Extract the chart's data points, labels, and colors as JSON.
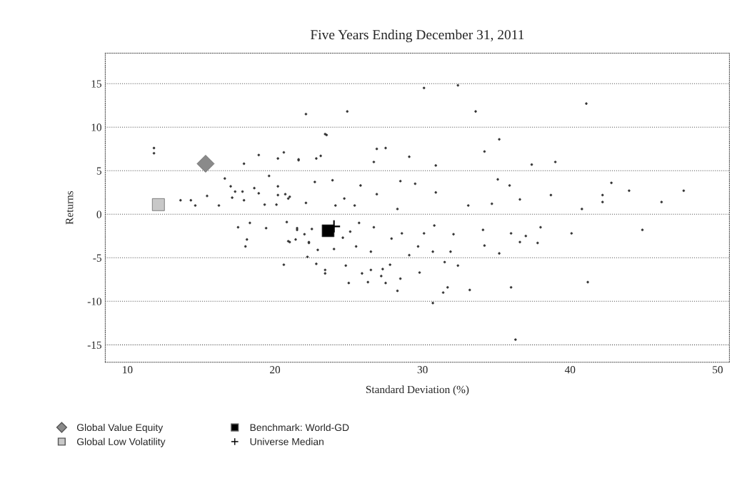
{
  "chart_data": {
    "type": "scatter",
    "title": "Five Years Ending December 31, 2011",
    "xlabel": "Standard Deviation (%)",
    "ylabel": "Returns",
    "xlim": [
      8.5,
      50.8
    ],
    "ylim": [
      -17,
      18.5
    ],
    "xticks": [
      10,
      20,
      30,
      40,
      50
    ],
    "yticks": [
      -15,
      -10,
      -5,
      0,
      5,
      10,
      15
    ],
    "grid": "y",
    "legend": "bottom",
    "series": [
      {
        "color": "#333333",
        "marker": "circle",
        "x": [
          30.1,
          32.4,
          41.1,
          22.1,
          24.9,
          33.6,
          23.5,
          35.2,
          26.9,
          27.5,
          23.1,
          29.1,
          21.6,
          34.2,
          37.4,
          39.0,
          30.9,
          26.7,
          42.8,
          44.0,
          47.7,
          42.2,
          42.2,
          46.2,
          40.8,
          38.7,
          35.9,
          36.6,
          34.7,
          33.1,
          35.1,
          30.9,
          29.5,
          28.5,
          23.9,
          22.7,
          25.8,
          26.9,
          24.7,
          24.1,
          22.1,
          21.0,
          25.4,
          28.3,
          38.0,
          40.1,
          44.9,
          37.0,
          36.0,
          34.1,
          32.1,
          30.8,
          30.1,
          28.6,
          27.9,
          26.7,
          25.7,
          25.1,
          24.6,
          22.5,
          21.5,
          22.3,
          21.0,
          24.0,
          25.5,
          26.5,
          29.7,
          30.7,
          31.9,
          34.2,
          35.2,
          36.6,
          37.8,
          29.1,
          31.5,
          32.4,
          22.8,
          24.8,
          26.5,
          27.3,
          27.8,
          27.2,
          25.9,
          29.8,
          28.5,
          23.4,
          25.0,
          26.3,
          27.5,
          28.3,
          31.4,
          31.7,
          33.2,
          36.0,
          41.2,
          36.3,
          30.7,
          11.8,
          11.8,
          23.4,
          20.6,
          18.9,
          17.9,
          20.2,
          21.6,
          22.8,
          16.6,
          17.0,
          17.3,
          17.8,
          18.6,
          18.9,
          17.1,
          17.9,
          15.4,
          14.3,
          13.6,
          14.6,
          16.2,
          19.3,
          20.1,
          20.9,
          20.2,
          20.7,
          19.6,
          20.2,
          17.5,
          18.3,
          19.4,
          18.1,
          18.0,
          20.9,
          21.4,
          20.6,
          20.8,
          21.5,
          22.0,
          22.3,
          22.9,
          23.4,
          22.2
        ],
        "values": [
          14.5,
          14.8,
          12.7,
          11.5,
          11.8,
          11.8,
          9.1,
          8.6,
          7.5,
          7.6,
          6.7,
          6.6,
          6.2,
          7.2,
          5.7,
          6.0,
          5.6,
          6.0,
          3.6,
          2.7,
          2.7,
          2.2,
          1.4,
          1.4,
          0.6,
          2.2,
          3.3,
          1.7,
          1.2,
          1.0,
          4.0,
          2.5,
          3.5,
          3.8,
          3.9,
          3.7,
          3.3,
          2.3,
          1.8,
          1.0,
          1.3,
          2.0,
          1.0,
          0.6,
          -1.5,
          -2.2,
          -1.8,
          -2.5,
          -2.2,
          -1.8,
          -2.3,
          -1.3,
          -2.2,
          -2.2,
          -2.8,
          -1.5,
          -1.0,
          -2.0,
          -2.7,
          -1.7,
          -1.8,
          -3.3,
          -3.2,
          -4.0,
          -3.7,
          -4.3,
          -3.7,
          -4.3,
          -4.3,
          -3.6,
          -4.5,
          -3.2,
          -3.3,
          -4.7,
          -5.5,
          -5.9,
          -5.7,
          -5.9,
          -6.4,
          -6.3,
          -5.8,
          -7.1,
          -6.8,
          -6.7,
          -7.4,
          -6.8,
          -7.9,
          -7.8,
          -7.9,
          -8.8,
          -9.0,
          -8.4,
          -8.7,
          -8.4,
          -7.8,
          -14.4,
          -10.2,
          7.6,
          7.0,
          9.2,
          7.1,
          6.8,
          5.8,
          6.4,
          6.3,
          6.4,
          4.1,
          3.2,
          2.6,
          2.6,
          3.0,
          2.4,
          1.9,
          1.6,
          2.1,
          1.6,
          1.6,
          1.0,
          1.0,
          1.1,
          1.1,
          1.8,
          2.2,
          2.3,
          4.4,
          3.2,
          -1.5,
          -1.0,
          -1.6,
          -2.9,
          -3.7,
          -3.1,
          -2.9,
          -5.8,
          -0.9,
          -1.6,
          -2.3,
          -3.2,
          -4.1,
          -6.4,
          -4.9
        ]
      },
      {
        "name": "Global Value Equity",
        "color": "#8a8a8a",
        "marker": "diamond",
        "x": [
          15.3
        ],
        "values": [
          5.8
        ]
      },
      {
        "name": "Global Low Volatility",
        "color": "#c8c8c8",
        "marker": "square",
        "x": [
          12.1
        ],
        "values": [
          1.1
        ]
      },
      {
        "name": "Benchmark: World-GD",
        "color": "#000000",
        "marker": "square",
        "x": [
          23.6
        ],
        "values": [
          -1.9
        ]
      },
      {
        "name": "Universe Median",
        "color": "#000000",
        "marker": "cross",
        "x": [
          24.0
        ],
        "values": [
          -1.4
        ]
      }
    ]
  }
}
